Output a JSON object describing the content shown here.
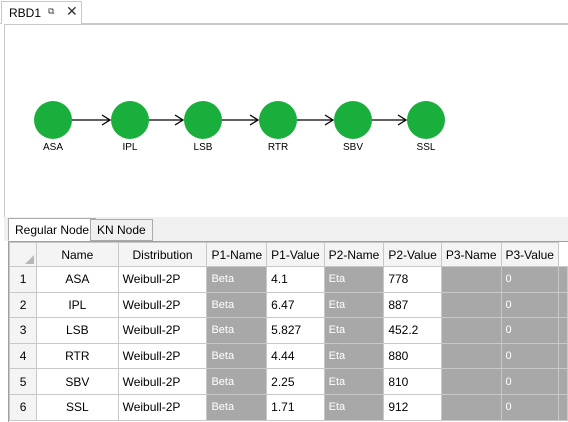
{
  "document": {
    "tab_label": "RBD1",
    "pin_glyph": "⧉",
    "close_glyph": "✕"
  },
  "diagram": {
    "node_color": "#1aae3c",
    "nodes": [
      "ASA",
      "IPL",
      "LSB",
      "RTR",
      "SBV",
      "SSL"
    ]
  },
  "tabs": [
    {
      "label": "Regular Node",
      "active": true
    },
    {
      "label": "KN Node",
      "active": false
    }
  ],
  "grid": {
    "columns": [
      "Name",
      "Distribution",
      "P1-Name",
      "P1-Value",
      "P2-Name",
      "P2-Value",
      "P3-Name",
      "P3-Value"
    ],
    "rows": [
      {
        "num": "1",
        "name": "ASA",
        "dist": "Weibull-2P",
        "p1n": "Beta",
        "p1v": "4.1",
        "p2n": "Eta",
        "p2v": "778",
        "p3n": "",
        "p3v": "0"
      },
      {
        "num": "2",
        "name": "IPL",
        "dist": "Weibull-2P",
        "p1n": "Beta",
        "p1v": "6.47",
        "p2n": "Eta",
        "p2v": "887",
        "p3n": "",
        "p3v": "0"
      },
      {
        "num": "3",
        "name": "LSB",
        "dist": "Weibull-2P",
        "p1n": "Beta",
        "p1v": "5.827",
        "p2n": "Eta",
        "p2v": "452.2",
        "p3n": "",
        "p3v": "0"
      },
      {
        "num": "4",
        "name": "RTR",
        "dist": "Weibull-2P",
        "p1n": "Beta",
        "p1v": "4.44",
        "p2n": "Eta",
        "p2v": "880",
        "p3n": "",
        "p3v": "0"
      },
      {
        "num": "5",
        "name": "SBV",
        "dist": "Weibull-2P",
        "p1n": "Beta",
        "p1v": "2.25",
        "p2n": "Eta",
        "p2v": "810",
        "p3n": "",
        "p3v": "0"
      },
      {
        "num": "6",
        "name": "SSL",
        "dist": "Weibull-2P",
        "p1n": "Beta",
        "p1v": "1.71",
        "p2n": "Eta",
        "p2v": "912",
        "p3n": "",
        "p3v": "0"
      }
    ]
  }
}
